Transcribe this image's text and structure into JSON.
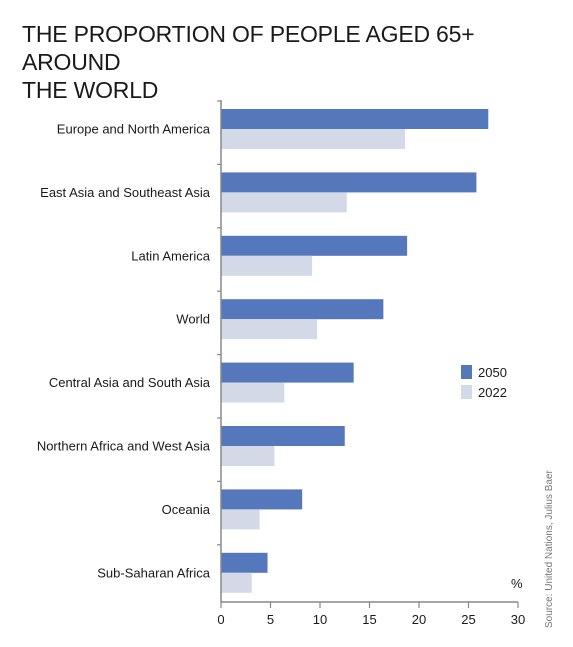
{
  "title_lines": [
    "THE PROPORTION OF PEOPLE AGED 65+ AROUND",
    "THE WORLD"
  ],
  "source": "Source: United Nations, Julius Baer",
  "chart_data": {
    "type": "bar",
    "orientation": "horizontal",
    "title": "THE PROPORTION OF PEOPLE AGED 65+ AROUND THE WORLD",
    "categories": [
      "Europe and North America",
      "East Asia and Southeast Asia",
      "Latin America",
      "World",
      "Central Asia and South Asia",
      "Northern Africa and West Asia",
      "Oceania",
      "Sub-Saharan Africa"
    ],
    "series": [
      {
        "name": "2050",
        "color": "#5577bb",
        "values": [
          27.0,
          25.8,
          18.8,
          16.4,
          13.4,
          12.5,
          8.2,
          4.7
        ]
      },
      {
        "name": "2022",
        "color": "#d4d9e8",
        "values": [
          18.6,
          12.7,
          9.2,
          9.7,
          6.4,
          5.4,
          3.9,
          3.1
        ]
      }
    ],
    "xlabel": "%",
    "ylabel": "",
    "xlim": [
      0,
      30
    ],
    "xticks": [
      0,
      5,
      10,
      15,
      20,
      25,
      30
    ],
    "grid": false,
    "legend": "right"
  }
}
